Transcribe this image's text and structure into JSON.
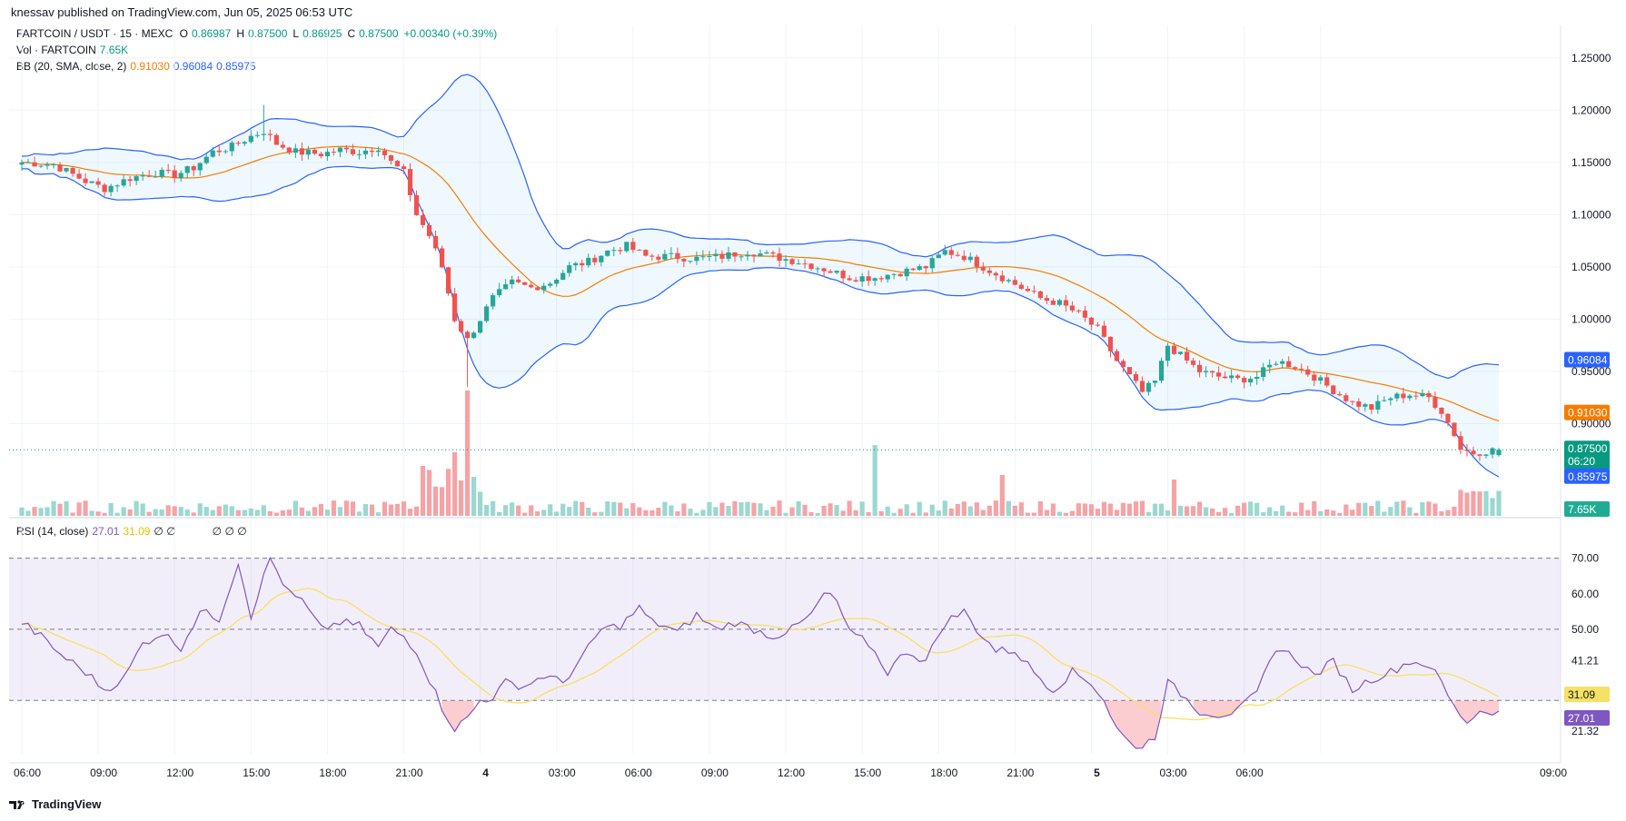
{
  "header": {
    "published": "knessav published on TradingView.com, Jun 05, 2025 06:53 UTC"
  },
  "legend": {
    "symbol": "FARTCOIN / USDT · 15 · MEXC",
    "o_label": "O",
    "o": "0.86987",
    "h_label": "H",
    "h": "0.87500",
    "l_label": "L",
    "l": "0.86925",
    "c_label": "C",
    "c": "0.87500",
    "change": "+0.00340 (+0.39%)",
    "vol_label": "Vol · FARTCOIN",
    "vol": "7.65K",
    "bb_label": "BB (20, SMA, close, 2)",
    "bb_basis": "0.91030",
    "bb_upper": "0.96084",
    "bb_lower": "0.85975",
    "rsi_label": "RSI (14, close)",
    "rsi": "27.01",
    "rsi_ma": "31.09",
    "rsi_extra": "∅ ∅",
    "rsi_extra2": "∅ ∅ ∅"
  },
  "price_badges": {
    "upper": "0.96084",
    "basis": "0.91030",
    "last": "0.87500",
    "countdown": "06:20",
    "lower": "0.85975",
    "volume": "7.65K"
  },
  "rsi_badges": {
    "ma": "31.09",
    "rsi": "27.01"
  },
  "footer": {
    "brand": "TradingView"
  },
  "colors": {
    "up": "#26a69a",
    "down": "#ef5350",
    "bb_band": "#2962ff",
    "bb_basis": "#f57c00",
    "rsi_line": "#7e57c2",
    "rsi_ma": "#f5e163",
    "vol_up": "#9ad8d0",
    "vol_down": "#f5a3a6"
  },
  "chart_data": [
    {
      "type": "candlestick",
      "title": "FARTCOIN / USDT · 15 · MEXC",
      "y_ticks": [
        "1.25000",
        "1.20000",
        "1.15000",
        "1.10000",
        "1.05000",
        "1.00000",
        "0.95000",
        "0.90000"
      ],
      "ylim": [
        0.81,
        1.255
      ],
      "x_ticks": [
        "06:00",
        "09:00",
        "12:00",
        "15:00",
        "18:00",
        "21:00",
        "4",
        "03:00",
        "06:00",
        "09:00",
        "12:00",
        "15:00",
        "18:00",
        "21:00",
        "5",
        "03:00",
        "06:00",
        "09:00"
      ],
      "close_keypoints": [
        [
          0,
          1.15
        ],
        [
          5,
          1.148
        ],
        [
          10,
          1.132
        ],
        [
          13,
          1.125
        ],
        [
          17,
          1.135
        ],
        [
          21,
          1.14
        ],
        [
          24,
          1.138
        ],
        [
          27,
          1.145
        ],
        [
          30,
          1.16
        ],
        [
          33,
          1.165
        ],
        [
          36,
          1.175
        ],
        [
          38,
          1.18
        ],
        [
          40,
          1.168
        ],
        [
          43,
          1.16
        ],
        [
          47,
          1.158
        ],
        [
          50,
          1.162
        ],
        [
          53,
          1.16
        ],
        [
          56,
          1.165
        ],
        [
          58,
          1.15
        ],
        [
          60,
          1.14
        ],
        [
          62,
          1.1
        ],
        [
          64,
          1.08
        ],
        [
          66,
          1.05
        ],
        [
          68,
          1.0
        ],
        [
          70,
          0.98
        ],
        [
          72,
          1.0
        ],
        [
          74,
          1.02
        ],
        [
          77,
          1.035
        ],
        [
          80,
          1.03
        ],
        [
          83,
          1.035
        ],
        [
          86,
          1.05
        ],
        [
          89,
          1.055
        ],
        [
          92,
          1.065
        ],
        [
          95,
          1.07
        ],
        [
          98,
          1.06
        ],
        [
          102,
          1.06
        ],
        [
          106,
          1.058
        ],
        [
          110,
          1.06
        ],
        [
          114,
          1.065
        ],
        [
          118,
          1.06
        ],
        [
          122,
          1.055
        ],
        [
          126,
          1.048
        ],
        [
          130,
          1.04
        ],
        [
          134,
          1.04
        ],
        [
          138,
          1.045
        ],
        [
          142,
          1.05
        ],
        [
          145,
          1.065
        ],
        [
          148,
          1.06
        ],
        [
          151,
          1.05
        ],
        [
          154,
          1.04
        ],
        [
          157,
          1.03
        ],
        [
          160,
          1.02
        ],
        [
          163,
          1.015
        ],
        [
          166,
          1.005
        ],
        [
          169,
          0.99
        ],
        [
          172,
          0.96
        ],
        [
          174,
          0.945
        ],
        [
          176,
          0.93
        ],
        [
          178,
          0.94
        ],
        [
          180,
          0.975
        ],
        [
          182,
          0.965
        ],
        [
          185,
          0.95
        ],
        [
          188,
          0.945
        ],
        [
          191,
          0.942
        ],
        [
          194,
          0.945
        ],
        [
          197,
          0.96
        ],
        [
          200,
          0.955
        ],
        [
          203,
          0.945
        ],
        [
          206,
          0.932
        ],
        [
          209,
          0.92
        ],
        [
          212,
          0.915
        ],
        [
          215,
          0.925
        ],
        [
          218,
          0.928
        ],
        [
          221,
          0.925
        ],
        [
          223,
          0.912
        ],
        [
          225,
          0.89
        ],
        [
          226,
          0.876
        ],
        [
          228,
          0.872
        ],
        [
          230,
          0.874
        ],
        [
          232,
          0.875
        ]
      ],
      "volume_label": "Vol · FARTCOIN",
      "last_volume": "7.65K",
      "indicator": "BB (20, SMA, close, 2)"
    },
    {
      "type": "line",
      "title": "RSI (14, close)",
      "y_ticks": [
        "70.00",
        "60.00",
        "50.00",
        "41.21",
        "21.32"
      ],
      "ylim": [
        15,
        75
      ],
      "overbought": 70,
      "oversold": 30,
      "midline": 50,
      "rsi_keypoints": [
        [
          0,
          52
        ],
        [
          3,
          48
        ],
        [
          6,
          43
        ],
        [
          10,
          38
        ],
        [
          13,
          33
        ],
        [
          16,
          36
        ],
        [
          19,
          46
        ],
        [
          22,
          49
        ],
        [
          25,
          45
        ],
        [
          28,
          55
        ],
        [
          31,
          53
        ],
        [
          34,
          69
        ],
        [
          36,
          54
        ],
        [
          39,
          70
        ],
        [
          42,
          60
        ],
        [
          44,
          58
        ],
        [
          47,
          50
        ],
        [
          50,
          52
        ],
        [
          53,
          51
        ],
        [
          56,
          45
        ],
        [
          58,
          50
        ],
        [
          60,
          48
        ],
        [
          62,
          44
        ],
        [
          64,
          36
        ],
        [
          66,
          28
        ],
        [
          68,
          22
        ],
        [
          70,
          25
        ],
        [
          72,
          30
        ],
        [
          74,
          31
        ],
        [
          76,
          35
        ],
        [
          79,
          34
        ],
        [
          82,
          37
        ],
        [
          85,
          35
        ],
        [
          88,
          42
        ],
        [
          91,
          50
        ],
        [
          94,
          51
        ],
        [
          97,
          56
        ],
        [
          99,
          52
        ],
        [
          101,
          51
        ],
        [
          103,
          49
        ],
        [
          106,
          54
        ],
        [
          109,
          50
        ],
        [
          112,
          52
        ],
        [
          115,
          50
        ],
        [
          118,
          48
        ],
        [
          121,
          50
        ],
        [
          124,
          54
        ],
        [
          126,
          60
        ],
        [
          128,
          58
        ],
        [
          130,
          49
        ],
        [
          133,
          46
        ],
        [
          136,
          38
        ],
        [
          139,
          44
        ],
        [
          142,
          41
        ],
        [
          145,
          52
        ],
        [
          148,
          55
        ],
        [
          150,
          50
        ],
        [
          153,
          44
        ],
        [
          156,
          44
        ],
        [
          159,
          38
        ],
        [
          162,
          33
        ],
        [
          165,
          38
        ],
        [
          168,
          35
        ],
        [
          170,
          30
        ],
        [
          172,
          22
        ],
        [
          174,
          18
        ],
        [
          176,
          17
        ],
        [
          178,
          20
        ],
        [
          180,
          35
        ],
        [
          182,
          32
        ],
        [
          185,
          27
        ],
        [
          188,
          26
        ],
        [
          191,
          27
        ],
        [
          194,
          32
        ],
        [
          197,
          45
        ],
        [
          200,
          42
        ],
        [
          203,
          37
        ],
        [
          206,
          41
        ],
        [
          209,
          33
        ],
        [
          212,
          36
        ],
        [
          215,
          38
        ],
        [
          218,
          41
        ],
        [
          221,
          40
        ],
        [
          223,
          35
        ],
        [
          225,
          28
        ],
        [
          227,
          24
        ],
        [
          229,
          27
        ],
        [
          232,
          27
        ]
      ]
    }
  ]
}
